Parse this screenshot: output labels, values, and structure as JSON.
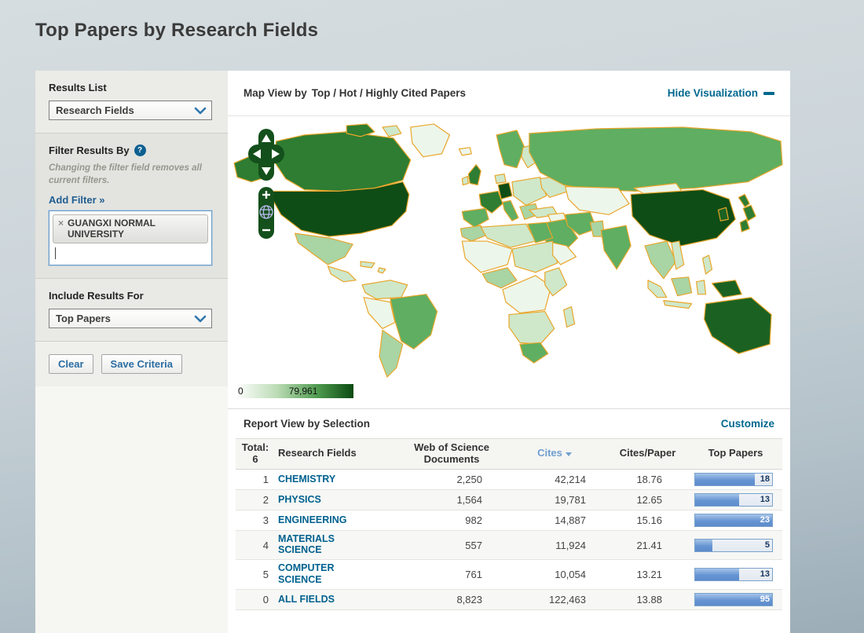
{
  "page": {
    "title": "Top Papers by Research Fields"
  },
  "sidebar": {
    "results_list": {
      "label": "Results List",
      "selected": "Research Fields"
    },
    "filter": {
      "label": "Filter Results By",
      "help_icon": "?",
      "note": "Changing the filter field removes all current filters.",
      "add_filter_label": "Add Filter »",
      "tag": {
        "remove_icon": "×",
        "text": "GUANGXI NORMAL UNIVERSITY"
      }
    },
    "include_results": {
      "label": "Include Results For",
      "selected": "Top Papers"
    },
    "buttons": {
      "clear": "Clear",
      "save": "Save Criteria"
    }
  },
  "map_section": {
    "title_prefix": "Map View by",
    "title_options": "Top / Hot / Highly Cited Papers",
    "hide_link": "Hide Visualization",
    "legend": {
      "min": "0",
      "max": "79,961"
    },
    "control_icons": [
      "pan-up",
      "pan-left",
      "pan-right",
      "pan-down",
      "zoom-in",
      "globe",
      "zoom-out"
    ]
  },
  "report": {
    "title": "Report View by Selection",
    "customize_link": "Customize",
    "table": {
      "total_label": "Total:",
      "total_value": "6",
      "columns": {
        "field": "Research Fields",
        "wos": "Web of Science Documents",
        "cites": "Cites",
        "cites_per_paper": "Cites/Paper",
        "top_papers": "Top Papers"
      },
      "sorted_column": "Cites",
      "rows": [
        {
          "rank": "1",
          "field": "CHEMISTRY",
          "wos_documents": "2,250",
          "cites": "42,214",
          "cites_per_paper": "18.76",
          "top_papers": "18",
          "bar_pct": 78
        },
        {
          "rank": "2",
          "field": "PHYSICS",
          "wos_documents": "1,564",
          "cites": "19,781",
          "cites_per_paper": "12.65",
          "top_papers": "13",
          "bar_pct": 57
        },
        {
          "rank": "3",
          "field": "ENGINEERING",
          "wos_documents": "982",
          "cites": "14,887",
          "cites_per_paper": "15.16",
          "top_papers": "23",
          "bar_pct": 100
        },
        {
          "rank": "4",
          "field": "MATERIALS SCIENCE",
          "wos_documents": "557",
          "cites": "11,924",
          "cites_per_paper": "21.41",
          "top_papers": "5",
          "bar_pct": 22
        },
        {
          "rank": "5",
          "field": "COMPUTER SCIENCE",
          "wos_documents": "761",
          "cites": "10,054",
          "cites_per_paper": "13.21",
          "top_papers": "13",
          "bar_pct": 57
        },
        {
          "rank": "0",
          "field": "ALL FIELDS",
          "wos_documents": "8,823",
          "cites": "122,463",
          "cites_per_paper": "13.88",
          "top_papers": "95",
          "bar_pct": 100
        }
      ]
    }
  },
  "colors": {
    "accent_teal": "#00688f",
    "link_blue": "#1f5d92",
    "sorted_header_blue": "#6f9fd0",
    "bar_fill_blue": "#6695d3",
    "map_border_orange": "#e9a62a",
    "map_green_palette": [
      "#edf6ea",
      "#cfe8ca",
      "#a9d4a3",
      "#5fae61",
      "#2e7d32",
      "#1b6222",
      "#0f4d16"
    ],
    "legend_gradient": [
      "#ffffff",
      "#0b4a11"
    ]
  }
}
